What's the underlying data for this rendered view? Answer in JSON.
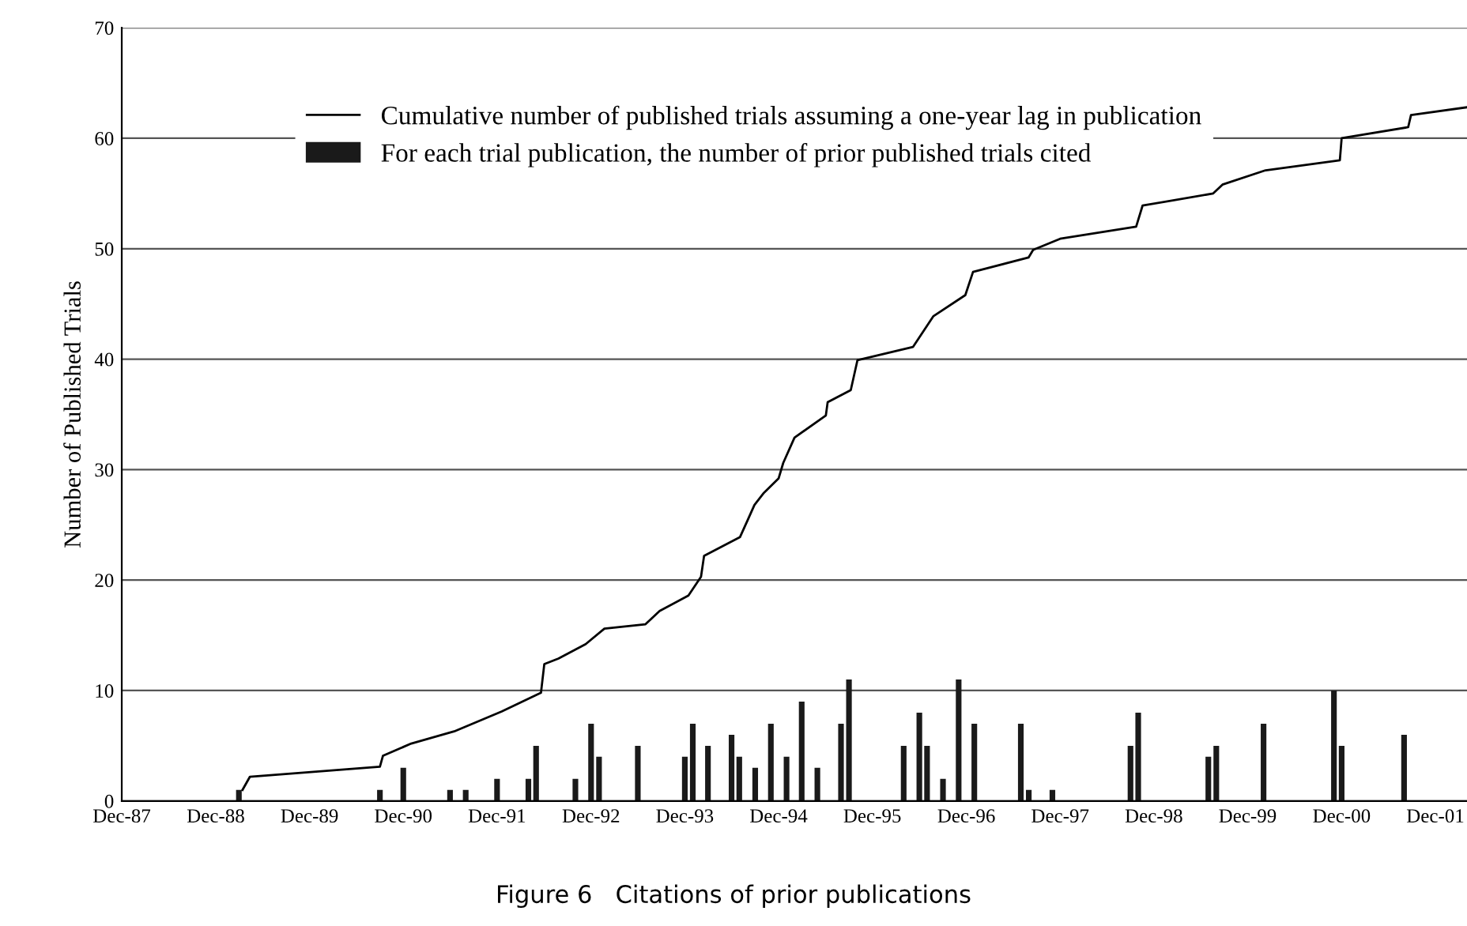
{
  "chart_data": {
    "type": "bar",
    "title": "Figure 6   Citations of prior publications",
    "ylabel": "Number of Published Trials",
    "xlim": [
      "1987-12-01",
      "2002-04-03"
    ],
    "ylim": [
      0,
      70
    ],
    "yticks": [
      0,
      10,
      20,
      30,
      40,
      50,
      60,
      70
    ],
    "xticks": [
      {
        "value": "1987-12-01",
        "label": "Dec-87"
      },
      {
        "value": "1988-12-01",
        "label": "Dec-88"
      },
      {
        "value": "1989-12-01",
        "label": "Dec-89"
      },
      {
        "value": "1990-12-01",
        "label": "Dec-90"
      },
      {
        "value": "1991-12-01",
        "label": "Dec-91"
      },
      {
        "value": "1992-12-01",
        "label": "Dec-92"
      },
      {
        "value": "1993-12-01",
        "label": "Dec-93"
      },
      {
        "value": "1994-12-01",
        "label": "Dec-94"
      },
      {
        "value": "1995-12-01",
        "label": "Dec-95"
      },
      {
        "value": "1996-12-01",
        "label": "Dec-96"
      },
      {
        "value": "1997-12-01",
        "label": "Dec-97"
      },
      {
        "value": "1998-12-01",
        "label": "Dec-98"
      },
      {
        "value": "1999-12-01",
        "label": "Dec-99"
      },
      {
        "value": "2000-12-01",
        "label": "Dec-00"
      },
      {
        "value": "2001-12-01",
        "label": "Dec-01"
      }
    ],
    "grid": "y",
    "legend": "top left",
    "series": [
      {
        "name": "Cumulative number of published trials assuming a one-year lag in publication",
        "type": "line",
        "color": "#000000",
        "line_style": "solid",
        "x": [
          "1989-03-15",
          "1989-04-13",
          "1990-09-01",
          "1990-09-13",
          "1991-01-01",
          "1991-06-17",
          "1991-12-19",
          "1992-05-20",
          "1992-06-02",
          "1992-07-27",
          "1992-11-10",
          "1993-01-22",
          "1993-07-01",
          "1993-08-25",
          "1993-12-15",
          "1994-02-02",
          "1994-02-14",
          "1994-07-04",
          "1994-08-06",
          "1994-08-29",
          "1994-10-05",
          "1994-12-01",
          "1994-12-19",
          "1995-02-01",
          "1995-06-03",
          "1995-06-10",
          "1995-09-08",
          "1995-10-04",
          "1996-05-07",
          "1996-07-26",
          "1996-11-27",
          "1996-12-27",
          "1997-07-31",
          "1997-08-18",
          "1997-12-01",
          "1998-09-23",
          "1998-10-18",
          "1999-07-20",
          "1999-08-25",
          "2000-02-09",
          "2000-11-24",
          "2000-12-01",
          "2001-08-17",
          "2001-08-28",
          "2002-04-01"
        ],
        "values": [
          1.0,
          2.2,
          3.1,
          4.1,
          5.2,
          6.3,
          8.1,
          9.8,
          12.4,
          12.9,
          14.2,
          15.6,
          16.0,
          17.2,
          18.6,
          20.3,
          22.2,
          23.9,
          25.6,
          26.8,
          27.9,
          29.2,
          30.6,
          32.9,
          34.9,
          36.1,
          37.2,
          39.9,
          41.1,
          43.9,
          45.8,
          47.9,
          49.2,
          49.9,
          50.9,
          52.0,
          53.9,
          55.0,
          55.8,
          57.1,
          58.0,
          60.0,
          61.0,
          62.1,
          62.8
        ]
      },
      {
        "name": "For each trial publication, the number of prior published trials cited",
        "color": "#1a1a1a",
        "x": [
          "1989-03",
          "1990-09",
          "1990-12",
          "1991-06",
          "1991-08",
          "1991-12",
          "1992-04",
          "1992-05",
          "1992-10",
          "1992-12",
          "1993-01",
          "1993-06",
          "1993-12",
          "1994-01",
          "1994-03",
          "1994-06",
          "1994-07",
          "1994-09",
          "1994-11",
          "1995-01",
          "1995-03",
          "1995-05",
          "1995-08",
          "1995-09",
          "1996-04",
          "1996-06",
          "1996-07",
          "1996-09",
          "1996-11",
          "1997-01",
          "1997-07",
          "1997-08",
          "1997-11",
          "1998-09",
          "1998-10",
          "1999-07",
          "1999-08",
          "2000-02",
          "2000-11",
          "2000-12",
          "2001-08"
        ],
        "values": [
          1,
          1,
          3,
          1,
          1,
          2,
          2,
          5,
          2,
          7,
          4,
          5,
          4,
          7,
          5,
          6,
          4,
          3,
          7,
          4,
          9,
          3,
          7,
          11,
          5,
          8,
          5,
          2,
          11,
          7,
          7,
          1,
          1,
          5,
          8,
          4,
          5,
          7,
          10,
          5,
          6
        ]
      }
    ]
  }
}
